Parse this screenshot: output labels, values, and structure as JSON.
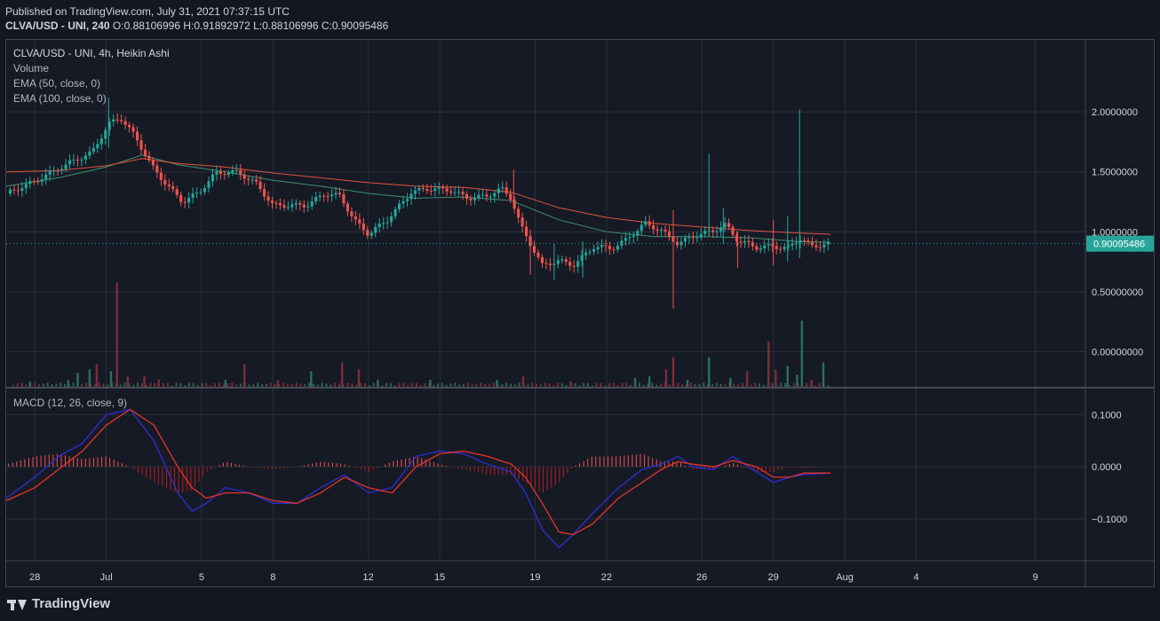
{
  "header": {
    "published": "Published on TradingView.com, July 31, 2021 07:37:15 UTC",
    "symbol": "CLVA/USD - UNI, 240",
    "o_label": "O:",
    "o_val": "0.88106996",
    "h_label": "H:",
    "h_val": "0.91892972",
    "l_label": "L:",
    "l_val": "0.88106996",
    "c_label": "C:",
    "c_val": "0.90095486"
  },
  "legend": {
    "title": "CLVA/USD - UNI, 4h, Heikin Ashi",
    "volume": "Volume",
    "ema50": "EMA (50, close, 0)",
    "ema100": "EMA (100, close, 0)",
    "macd": "MACD (12, 26, close, 9)"
  },
  "footer": {
    "brand": "TradingView"
  },
  "colors": {
    "up": "#26a69a",
    "down": "#ef5350",
    "ema50": "#3f8f6a",
    "ema100": "#e0533f",
    "macd": "#2a2fd4",
    "signal": "#e4342a",
    "hist_pos": "#ef5350",
    "hist_neg": "#b71c1c",
    "last_price_bg": "#26a69a",
    "grid": "#2a2e39"
  },
  "chart_data": [
    {
      "type": "candlestick",
      "title": "CLVA/USD - UNI, 4h, Heikin Ashi",
      "ylim": [
        -0.3,
        2.6
      ],
      "y_ticks": [
        2.0,
        1.5,
        1.0,
        0.5,
        0.0
      ],
      "y_tick_labels": [
        "2.0000000",
        "1.5000000",
        "1.0000000",
        "0.50000000",
        "0.00000000"
      ],
      "last_price": 0.90095486,
      "last_price_label": "0.90095486",
      "x_tick_labels": [
        "28",
        "Jul",
        "5",
        "8",
        "12",
        "15",
        "19",
        "22",
        "26",
        "29",
        "Aug",
        "4",
        "9"
      ],
      "x_tick_days": [
        -3,
        0,
        4,
        7,
        11,
        14,
        18,
        21,
        25,
        28,
        31,
        34,
        39
      ],
      "x_start_day": -4.2,
      "x_end_day": 41.1,
      "last_day": 30.4,
      "anchors": [
        {
          "d": -4.2,
          "c": 1.32
        },
        {
          "d": -3.0,
          "c": 1.42
        },
        {
          "d": -1.5,
          "c": 1.58
        },
        {
          "d": -0.6,
          "c": 1.66
        },
        {
          "d": 0.1,
          "c": 1.9
        },
        {
          "d": 0.6,
          "c": 1.95
        },
        {
          "d": 1.2,
          "c": 1.8
        },
        {
          "d": 1.9,
          "c": 1.55
        },
        {
          "d": 2.5,
          "c": 1.4
        },
        {
          "d": 3.2,
          "c": 1.25
        },
        {
          "d": 3.9,
          "c": 1.33
        },
        {
          "d": 4.6,
          "c": 1.49
        },
        {
          "d": 5.5,
          "c": 1.5
        },
        {
          "d": 6.3,
          "c": 1.4
        },
        {
          "d": 7.0,
          "c": 1.22
        },
        {
          "d": 7.5,
          "c": 1.22
        },
        {
          "d": 8.4,
          "c": 1.22
        },
        {
          "d": 9.2,
          "c": 1.32
        },
        {
          "d": 9.8,
          "c": 1.3
        },
        {
          "d": 10.4,
          "c": 1.1
        },
        {
          "d": 11.0,
          "c": 0.98
        },
        {
          "d": 11.8,
          "c": 1.1
        },
        {
          "d": 12.8,
          "c": 1.33
        },
        {
          "d": 13.5,
          "c": 1.36
        },
        {
          "d": 14.4,
          "c": 1.35
        },
        {
          "d": 15.2,
          "c": 1.28
        },
        {
          "d": 16.0,
          "c": 1.3
        },
        {
          "d": 16.6,
          "c": 1.36
        },
        {
          "d": 17.0,
          "c": 1.28
        },
        {
          "d": 17.4,
          "c": 1.05
        },
        {
          "d": 17.8,
          "c": 0.9
        },
        {
          "d": 18.3,
          "c": 0.72
        },
        {
          "d": 19.0,
          "c": 0.76
        },
        {
          "d": 19.6,
          "c": 0.72
        },
        {
          "d": 20.5,
          "c": 0.88
        },
        {
          "d": 21.2,
          "c": 0.86
        },
        {
          "d": 21.8,
          "c": 0.93
        },
        {
          "d": 22.6,
          "c": 1.07
        },
        {
          "d": 23.3,
          "c": 1.01
        },
        {
          "d": 24.0,
          "c": 0.9
        },
        {
          "d": 24.6,
          "c": 0.96
        },
        {
          "d": 25.5,
          "c": 1.01
        },
        {
          "d": 26.0,
          "c": 1.06
        },
        {
          "d": 26.5,
          "c": 0.93
        },
        {
          "d": 27.3,
          "c": 0.87
        },
        {
          "d": 28.0,
          "c": 0.88
        },
        {
          "d": 28.6,
          "c": 0.86
        },
        {
          "d": 29.1,
          "c": 0.95
        },
        {
          "d": 29.6,
          "c": 0.88
        },
        {
          "d": 30.4,
          "c": 0.9
        }
      ],
      "wicks": [
        {
          "d": 0.1,
          "high": 2.12,
          "low": 1.7
        },
        {
          "d": 17.1,
          "high": 1.52,
          "low": 1.2
        },
        {
          "d": 17.8,
          "high": 1.02,
          "low": 0.64
        },
        {
          "d": 18.8,
          "high": 0.9,
          "low": 0.6
        },
        {
          "d": 20.0,
          "high": 0.92,
          "low": 0.62
        },
        {
          "d": 23.8,
          "high": 1.18,
          "low": 0.36
        },
        {
          "d": 25.3,
          "high": 1.65,
          "low": 0.96
        },
        {
          "d": 25.9,
          "high": 1.2,
          "low": 0.9
        },
        {
          "d": 26.5,
          "high": 1.0,
          "low": 0.7
        },
        {
          "d": 28.0,
          "high": 1.1,
          "low": 0.72
        },
        {
          "d": 28.6,
          "high": 1.13,
          "low": 0.75
        },
        {
          "d": 29.1,
          "high": 2.02,
          "low": 0.78
        }
      ],
      "series": [
        {
          "name": "EMA (50, close, 0)",
          "points": [
            [
              -4.2,
              1.38
            ],
            [
              -2,
              1.45
            ],
            [
              0,
              1.54
            ],
            [
              1.5,
              1.64
            ],
            [
              3,
              1.56
            ],
            [
              5,
              1.5
            ],
            [
              7,
              1.43
            ],
            [
              9,
              1.38
            ],
            [
              11,
              1.32
            ],
            [
              13,
              1.28
            ],
            [
              15,
              1.29
            ],
            [
              17,
              1.26
            ],
            [
              19,
              1.1
            ],
            [
              21,
              1.0
            ],
            [
              23,
              0.96
            ],
            [
              25,
              0.96
            ],
            [
              27,
              0.95
            ],
            [
              29,
              0.92
            ],
            [
              30.4,
              0.91
            ]
          ]
        },
        {
          "name": "EMA (100, close, 0)",
          "points": [
            [
              -4.2,
              1.5
            ],
            [
              -2,
              1.51
            ],
            [
              0,
              1.55
            ],
            [
              1.5,
              1.61
            ],
            [
              3,
              1.57
            ],
            [
              5,
              1.54
            ],
            [
              7,
              1.49
            ],
            [
              9,
              1.45
            ],
            [
              11,
              1.41
            ],
            [
              13,
              1.38
            ],
            [
              15,
              1.37
            ],
            [
              17,
              1.33
            ],
            [
              19,
              1.2
            ],
            [
              21,
              1.12
            ],
            [
              23,
              1.07
            ],
            [
              25,
              1.04
            ],
            [
              27,
              1.01
            ],
            [
              29,
              0.99
            ],
            [
              30.4,
              0.98
            ]
          ]
        }
      ]
    },
    {
      "type": "bar",
      "title": "Volume",
      "bars": [
        {
          "d": -3.2,
          "v": 0.015,
          "up": true
        },
        {
          "d": -1.6,
          "v": 0.02,
          "up": true
        },
        {
          "d": -1.2,
          "v": 0.04,
          "up": true
        },
        {
          "d": -0.7,
          "v": 0.05,
          "up": true
        },
        {
          "d": -0.4,
          "v": 0.065,
          "up": false
        },
        {
          "d": 0.2,
          "v": 0.045,
          "up": true
        },
        {
          "d": 0.45,
          "v": 0.3,
          "up": false
        },
        {
          "d": 0.9,
          "v": 0.03,
          "up": false
        },
        {
          "d": 1.6,
          "v": 0.03,
          "up": false
        },
        {
          "d": 2.2,
          "v": 0.02,
          "up": false
        },
        {
          "d": 5.0,
          "v": 0.02,
          "up": true
        },
        {
          "d": 5.8,
          "v": 0.065,
          "up": false
        },
        {
          "d": 7.2,
          "v": 0.02,
          "up": false
        },
        {
          "d": 8.6,
          "v": 0.045,
          "up": true
        },
        {
          "d": 9.9,
          "v": 0.07,
          "up": false
        },
        {
          "d": 10.6,
          "v": 0.05,
          "up": false
        },
        {
          "d": 11.4,
          "v": 0.02,
          "up": true
        },
        {
          "d": 13.6,
          "v": 0.02,
          "up": true
        },
        {
          "d": 16.4,
          "v": 0.02,
          "up": true
        },
        {
          "d": 17.5,
          "v": 0.03,
          "up": false
        },
        {
          "d": 19.5,
          "v": 0.015,
          "up": false
        },
        {
          "d": 22.2,
          "v": 0.025,
          "up": true
        },
        {
          "d": 22.8,
          "v": 0.03,
          "up": true
        },
        {
          "d": 23.5,
          "v": 0.05,
          "up": false
        },
        {
          "d": 23.8,
          "v": 0.085,
          "up": false
        },
        {
          "d": 24.4,
          "v": 0.02,
          "up": true
        },
        {
          "d": 25.3,
          "v": 0.085,
          "up": true
        },
        {
          "d": 26.2,
          "v": 0.025,
          "up": true
        },
        {
          "d": 26.9,
          "v": 0.045,
          "up": false
        },
        {
          "d": 27.8,
          "v": 0.13,
          "up": false
        },
        {
          "d": 28.1,
          "v": 0.05,
          "up": false
        },
        {
          "d": 28.6,
          "v": 0.06,
          "up": true
        },
        {
          "d": 29.0,
          "v": 0.035,
          "up": true
        },
        {
          "d": 29.2,
          "v": 0.19,
          "up": true
        },
        {
          "d": 29.6,
          "v": 0.02,
          "up": false
        },
        {
          "d": 30.1,
          "v": 0.07,
          "up": true
        }
      ]
    },
    {
      "type": "line",
      "title": "MACD (12, 26, close, 9)",
      "ylim": [
        -0.18,
        0.15
      ],
      "y_ticks": [
        0.1,
        0.0,
        -0.1
      ],
      "y_tick_labels": [
        "0.1000",
        "0.0000",
        "−0.1000"
      ],
      "series": [
        {
          "name": "MACD",
          "points": [
            [
              -4.2,
              -0.06
            ],
            [
              -3,
              -0.02
            ],
            [
              -2,
              0.02
            ],
            [
              -1,
              0.045
            ],
            [
              0,
              0.1
            ],
            [
              1,
              0.11
            ],
            [
              2,
              0.05
            ],
            [
              3,
              -0.05
            ],
            [
              3.6,
              -0.085
            ],
            [
              4.2,
              -0.07
            ],
            [
              5,
              -0.04
            ],
            [
              6,
              -0.05
            ],
            [
              7,
              -0.07
            ],
            [
              8,
              -0.07
            ],
            [
              9,
              -0.04
            ],
            [
              10,
              -0.015
            ],
            [
              11,
              -0.05
            ],
            [
              12,
              -0.04
            ],
            [
              13,
              0.02
            ],
            [
              14,
              0.03
            ],
            [
              15,
              0.025
            ],
            [
              16,
              0.005
            ],
            [
              17,
              -0.01
            ],
            [
              17.6,
              -0.05
            ],
            [
              18.3,
              -0.12
            ],
            [
              19,
              -0.155
            ],
            [
              19.6,
              -0.13
            ],
            [
              20.4,
              -0.09
            ],
            [
              21.5,
              -0.04
            ],
            [
              22.5,
              -0.005
            ],
            [
              23.3,
              0.005
            ],
            [
              24,
              0.02
            ],
            [
              24.6,
              0.0
            ],
            [
              25.5,
              -0.005
            ],
            [
              26.3,
              0.02
            ],
            [
              27.3,
              -0.01
            ],
            [
              28,
              -0.03
            ],
            [
              28.7,
              -0.02
            ],
            [
              29.3,
              -0.015
            ],
            [
              30.4,
              -0.012
            ]
          ]
        },
        {
          "name": "Signal",
          "points": [
            [
              -4.2,
              -0.065
            ],
            [
              -3,
              -0.04
            ],
            [
              -2,
              -0.005
            ],
            [
              -1,
              0.03
            ],
            [
              0,
              0.08
            ],
            [
              1,
              0.11
            ],
            [
              2,
              0.08
            ],
            [
              3,
              0.0
            ],
            [
              3.6,
              -0.04
            ],
            [
              4.2,
              -0.06
            ],
            [
              5,
              -0.05
            ],
            [
              6,
              -0.05
            ],
            [
              7,
              -0.065
            ],
            [
              8,
              -0.07
            ],
            [
              9,
              -0.05
            ],
            [
              10,
              -0.02
            ],
            [
              11,
              -0.04
            ],
            [
              12,
              -0.05
            ],
            [
              13,
              0.0
            ],
            [
              14,
              0.025
            ],
            [
              15,
              0.03
            ],
            [
              16,
              0.02
            ],
            [
              17,
              0.005
            ],
            [
              17.6,
              -0.02
            ],
            [
              18.3,
              -0.07
            ],
            [
              19,
              -0.125
            ],
            [
              19.6,
              -0.13
            ],
            [
              20.4,
              -0.11
            ],
            [
              21.5,
              -0.06
            ],
            [
              22.5,
              -0.03
            ],
            [
              23.3,
              -0.005
            ],
            [
              24,
              0.01
            ],
            [
              24.6,
              0.005
            ],
            [
              25.5,
              0.0
            ],
            [
              26.3,
              0.012
            ],
            [
              27.3,
              0.0
            ],
            [
              28,
              -0.02
            ],
            [
              28.7,
              -0.02
            ],
            [
              29.3,
              -0.012
            ],
            [
              30.4,
              -0.012
            ]
          ]
        }
      ]
    }
  ]
}
